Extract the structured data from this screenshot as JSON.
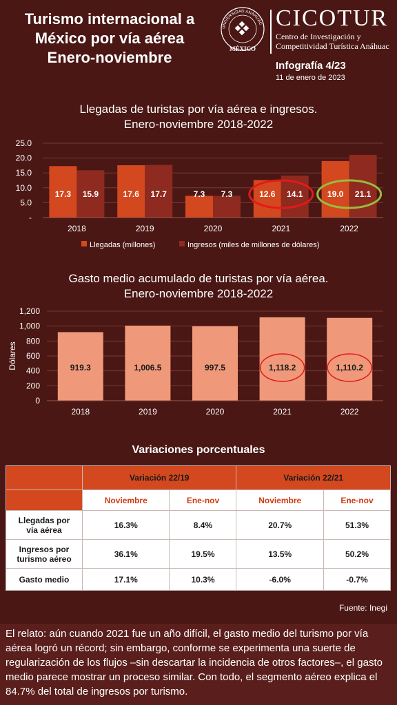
{
  "header": {
    "title_lines": [
      "Turismo internacional a",
      "México por vía aérea",
      "Enero-noviembre"
    ],
    "seal_text": "MÉXICO",
    "seal_ring_text": "UNIVERSIDAD ANÁHUAC",
    "brand": "CICOTUR",
    "brand_sub_lines": [
      "Centro de Investigación y",
      "Competitividad Turística Anáhuac"
    ],
    "info_title": "Infografía 4/23",
    "info_date": "11 de enero de 2023"
  },
  "colors": {
    "background": "#4a1714",
    "bar_light": "#d4481f",
    "bar_dark": "#8e2a1f",
    "bar_salmon": "#f0997a",
    "highlight_red": "#e21a1a",
    "highlight_green": "#9bbb3c"
  },
  "chart_data": [
    {
      "type": "bar",
      "title_lines": [
        "Llegadas de turistas por vía aérea e ingresos.",
        "Enero-noviembre 2018-2022"
      ],
      "categories": [
        "2018",
        "2019",
        "2020",
        "2021",
        "2022"
      ],
      "series": [
        {
          "name": "Llegadas (millones)",
          "values": [
            17.3,
            17.6,
            7.3,
            12.6,
            19.0
          ],
          "labels": [
            "17.3",
            "17.6",
            "7.3",
            "12.6",
            "19.0"
          ]
        },
        {
          "name": "Ingresos (miles de millones de dólares)",
          "values": [
            15.9,
            17.7,
            7.3,
            14.1,
            21.1
          ],
          "labels": [
            "15.9",
            "17.7",
            "7.3",
            "14.1",
            "21.1"
          ]
        }
      ],
      "yticks": [
        "-",
        "5.0",
        "10.0",
        "15.0",
        "20.0",
        "25.0"
      ],
      "ylim": [
        0,
        25
      ],
      "ylabel": "",
      "legend": "bottom",
      "grid": true,
      "highlights": [
        {
          "category": "2021",
          "color": "red"
        },
        {
          "category": "2022",
          "color": "green"
        }
      ]
    },
    {
      "type": "bar",
      "title_lines": [
        "Gasto medio acumulado de turistas por vía aérea.",
        "Enero-noviembre 2018-2022"
      ],
      "categories": [
        "2018",
        "2019",
        "2020",
        "2021",
        "2022"
      ],
      "values": [
        919.3,
        1006.5,
        997.5,
        1118.2,
        1110.2
      ],
      "labels": [
        "919.3",
        "1,006.5",
        "997.5",
        "1,118.2",
        "1,110.2"
      ],
      "yticks": [
        "0",
        "200",
        "400",
        "600",
        "800",
        "1,000",
        "1,200"
      ],
      "ylim": [
        0,
        1200
      ],
      "ylabel": "Dólares",
      "grid": true,
      "highlights": [
        {
          "category": "2021",
          "color": "red"
        },
        {
          "category": "2022",
          "color": "red"
        }
      ]
    }
  ],
  "variations": {
    "title": "Variaciones porcentuales",
    "groups": [
      "Variación 22/19",
      "Variación 22/21"
    ],
    "subheaders": [
      "Noviembre",
      "Ene-nov",
      "Noviembre",
      "Ene-nov"
    ],
    "rows": [
      {
        "label_lines": [
          "Llegadas por",
          "vía aérea"
        ],
        "values": [
          "16.3%",
          "8.4%",
          "20.7%",
          "51.3%"
        ]
      },
      {
        "label_lines": [
          "Ingresos por",
          "turismo aéreo"
        ],
        "values": [
          "36.1%",
          "19.5%",
          "13.5%",
          "50.2%"
        ]
      },
      {
        "label_lines": [
          "Gasto medio"
        ],
        "values": [
          "17.1%",
          "10.3%",
          "-6.0%",
          "-0.7%"
        ]
      }
    ]
  },
  "source": "Fuente: Inegi",
  "footer": "El relato: aún cuando 2021 fue un año difícil, el gasto medio del turismo por vía aérea logró un récord; sin embargo, conforme se experimenta una suerte de regularización de los flujos –sin descartar la incidencia de otros factores–, el gasto medio parece mostrar un proceso similar. Con todo, el segmento aéreo explica el 84.7% del total de ingresos por turismo."
}
